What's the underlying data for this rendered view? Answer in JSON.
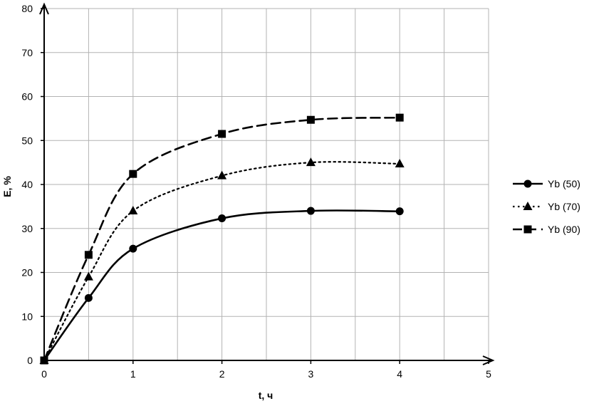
{
  "chart_data": {
    "type": "line",
    "xlabel": "t, ч",
    "ylabel": "E, %",
    "xlim": [
      0,
      5
    ],
    "ylim": [
      0,
      80
    ],
    "xticks": [
      0,
      1,
      2,
      3,
      4,
      5
    ],
    "yticks": [
      0,
      10,
      20,
      30,
      40,
      50,
      60,
      70,
      80
    ],
    "grid": true,
    "smooth": true,
    "legend_position": "right",
    "series": [
      {
        "name": "Yb (50)",
        "marker": "circle",
        "line_style": "solid",
        "x": [
          0,
          0.5,
          1,
          2,
          3,
          4
        ],
        "y": [
          0,
          14.2,
          25.4,
          32.3,
          34.0,
          33.9
        ]
      },
      {
        "name": "Yb (70)",
        "marker": "triangle",
        "line_style": "dotted",
        "x": [
          0,
          0.5,
          1,
          2,
          3,
          4
        ],
        "y": [
          0,
          19.0,
          34.0,
          42.0,
          45.0,
          44.7
        ]
      },
      {
        "name": "Yb (90)",
        "marker": "square",
        "line_style": "dashed",
        "x": [
          0,
          0.5,
          1,
          2,
          3,
          4
        ],
        "y": [
          0,
          24.0,
          42.4,
          51.5,
          54.7,
          55.2
        ]
      }
    ]
  }
}
